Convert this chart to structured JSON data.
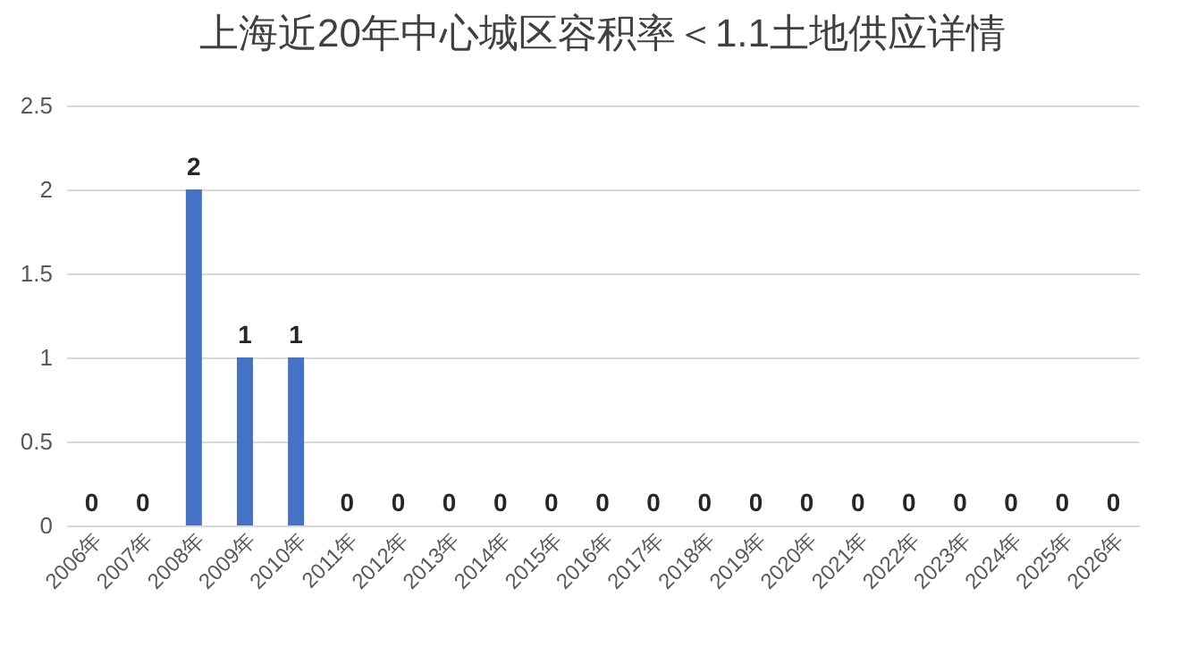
{
  "chart_data": {
    "type": "bar",
    "title": "上海近20年中心城区容积率＜1.1土地供应详情",
    "categories": [
      "2006年",
      "2007年",
      "2008年",
      "2009年",
      "2010年",
      "2011年",
      "2012年",
      "2013年",
      "2014年",
      "2015年",
      "2016年",
      "2017年",
      "2018年",
      "2019年",
      "2020年",
      "2021年",
      "2022年",
      "2023年",
      "2024年",
      "2025年",
      "2026年"
    ],
    "values": [
      0,
      0,
      2,
      1,
      1,
      0,
      0,
      0,
      0,
      0,
      0,
      0,
      0,
      0,
      0,
      0,
      0,
      0,
      0,
      0,
      0
    ],
    "color": "#4472c4",
    "ylim": [
      0,
      2.5
    ],
    "yticks": [
      0,
      0.5,
      1,
      1.5,
      2,
      2.5
    ],
    "grid": "y",
    "data_labels": true
  }
}
